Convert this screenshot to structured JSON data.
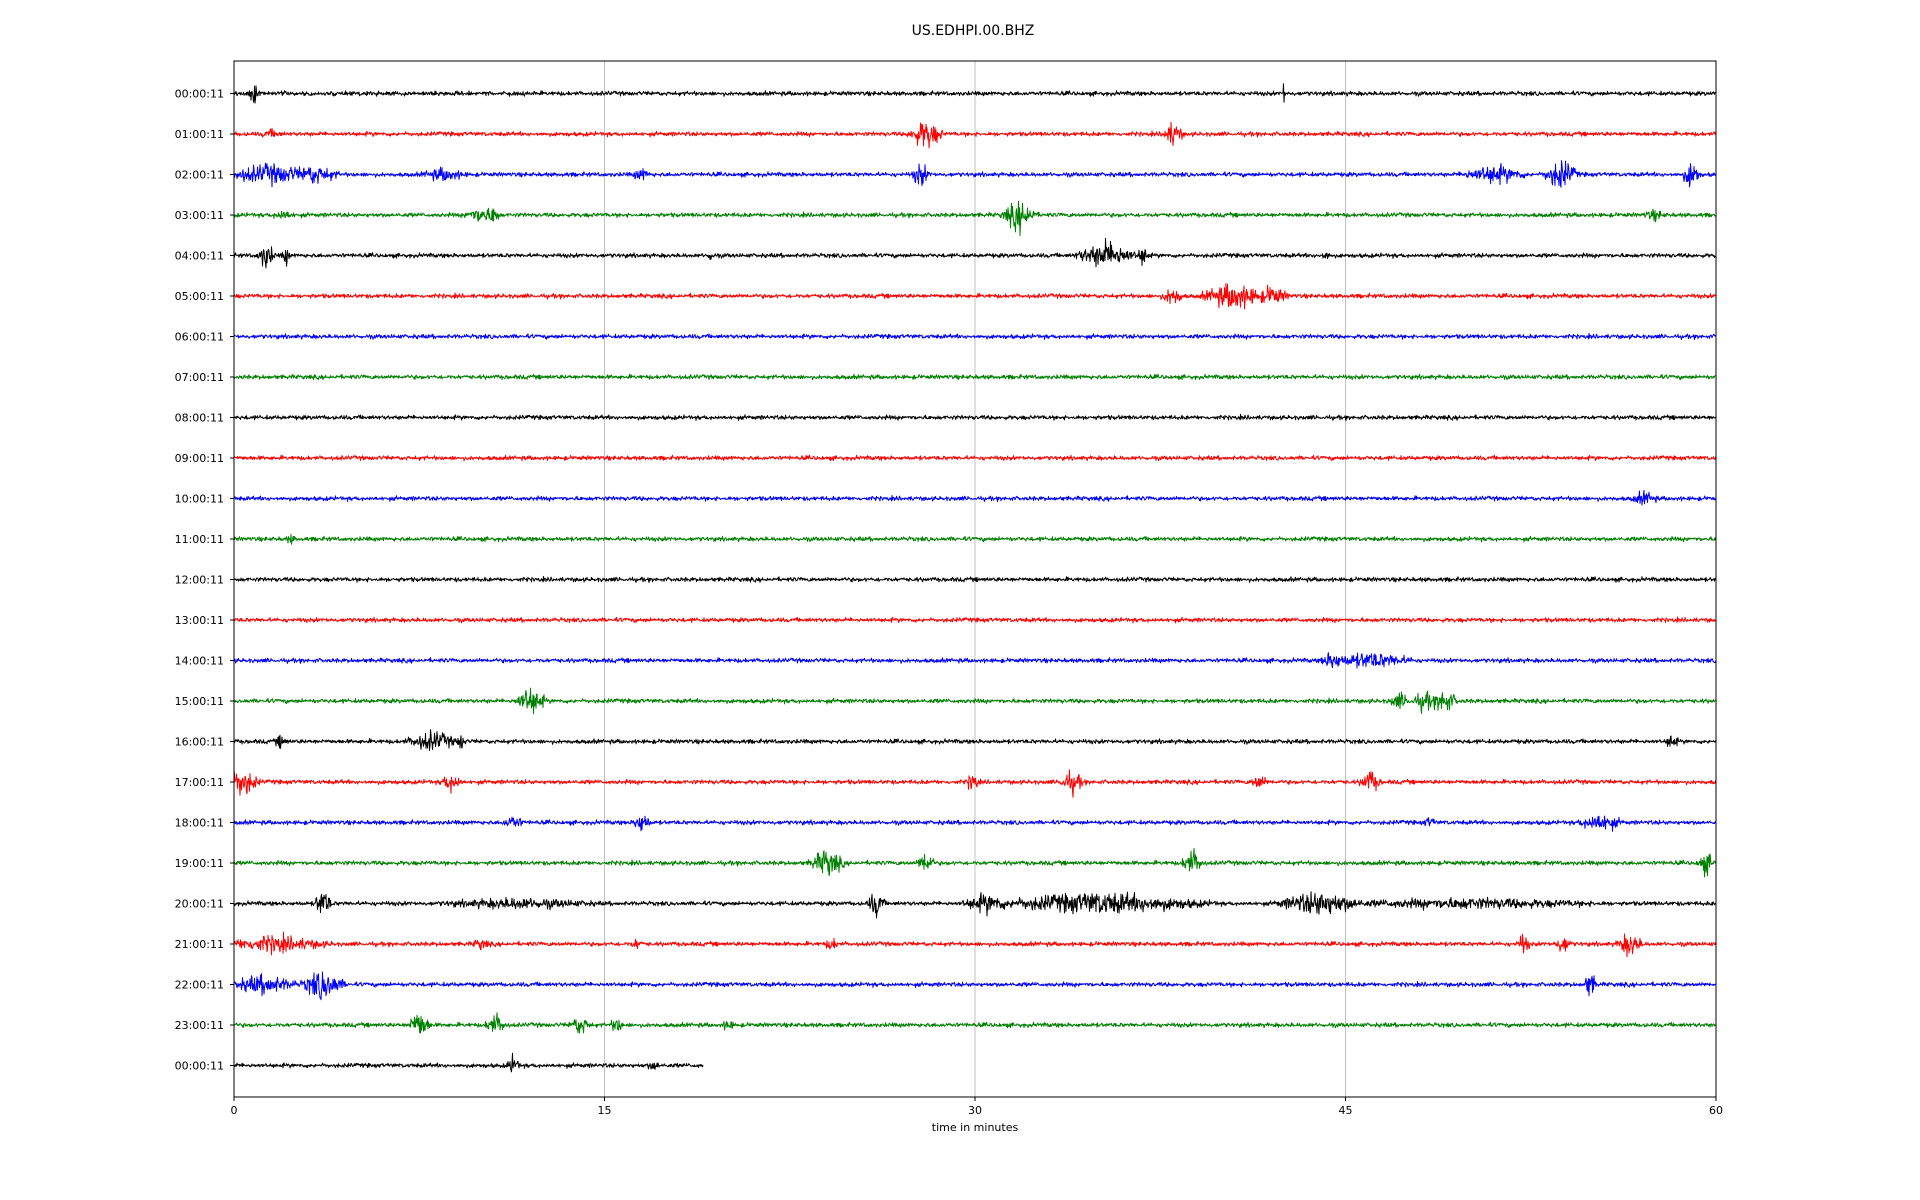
{
  "chart_data": {
    "type": "line",
    "title": "US.EDHPI.00.BHZ",
    "xlabel": "time in minutes",
    "ylabel": "",
    "xlim": [
      0,
      60
    ],
    "x_ticks": [
      "0",
      "15",
      "30",
      "45",
      "60"
    ],
    "x_tick_values": [
      0,
      15,
      30,
      45,
      60
    ],
    "grid": "vertical",
    "legend": "none",
    "colors": [
      "#000000",
      "#ff0000",
      "#0000ff",
      "#008000"
    ],
    "series": [
      {
        "label": "00:00:11",
        "color": "#000000",
        "end_min": 60,
        "events": [
          {
            "t": 0.8,
            "a": 1.0,
            "d": 0.2
          },
          {
            "t": 42.5,
            "a": 0.9,
            "d": 0.05
          }
        ]
      },
      {
        "label": "01:00:11",
        "color": "#ff0000",
        "end_min": 60,
        "events": [
          {
            "t": 28.0,
            "a": 1.0,
            "d": 0.8
          },
          {
            "t": 38.0,
            "a": 0.8,
            "d": 0.5
          },
          {
            "t": 1.5,
            "a": 0.2,
            "d": 0.5
          }
        ]
      },
      {
        "label": "02:00:11",
        "color": "#0000ff",
        "end_min": 60,
        "events": [
          {
            "t": 1.5,
            "a": 0.6,
            "d": 2.5
          },
          {
            "t": 3.2,
            "a": 0.6,
            "d": 1.2
          },
          {
            "t": 8.5,
            "a": 0.4,
            "d": 1.0
          },
          {
            "t": 16.5,
            "a": 0.4,
            "d": 0.4
          },
          {
            "t": 27.8,
            "a": 0.8,
            "d": 0.4
          },
          {
            "t": 51.0,
            "a": 0.6,
            "d": 1.5
          },
          {
            "t": 53.7,
            "a": 1.0,
            "d": 0.8
          },
          {
            "t": 59.0,
            "a": 1.0,
            "d": 0.4
          }
        ]
      },
      {
        "label": "03:00:11",
        "color": "#008000",
        "end_min": 60,
        "events": [
          {
            "t": 2.0,
            "a": 0.3,
            "d": 0.5
          },
          {
            "t": 10.0,
            "a": 0.5,
            "d": 0.8
          },
          {
            "t": 10.5,
            "a": 0.7,
            "d": 0.3
          },
          {
            "t": 31.8,
            "a": 1.0,
            "d": 0.8
          },
          {
            "t": 57.5,
            "a": 0.3,
            "d": 0.5
          }
        ]
      },
      {
        "label": "04:00:11",
        "color": "#000000",
        "end_min": 60,
        "events": [
          {
            "t": 1.3,
            "a": 0.9,
            "d": 0.4
          },
          {
            "t": 2.1,
            "a": 0.6,
            "d": 0.2
          },
          {
            "t": 19.3,
            "a": 0.3,
            "d": 0.2
          },
          {
            "t": 35.3,
            "a": 0.9,
            "d": 1.4
          },
          {
            "t": 36.8,
            "a": 0.7,
            "d": 0.3
          },
          {
            "t": 44.2,
            "a": 0.3,
            "d": 0.2
          }
        ]
      },
      {
        "label": "05:00:11",
        "color": "#ff0000",
        "end_min": 60,
        "events": [
          {
            "t": 38.0,
            "a": 0.6,
            "d": 0.5
          },
          {
            "t": 40.5,
            "a": 0.9,
            "d": 1.5
          },
          {
            "t": 42.0,
            "a": 0.6,
            "d": 0.8
          }
        ]
      },
      {
        "label": "06:00:11",
        "color": "#0000ff",
        "end_min": 60,
        "events": []
      },
      {
        "label": "07:00:11",
        "color": "#008000",
        "end_min": 60,
        "events": []
      },
      {
        "label": "08:00:11",
        "color": "#000000",
        "end_min": 60,
        "events": []
      },
      {
        "label": "09:00:11",
        "color": "#ff0000",
        "end_min": 60,
        "events": []
      },
      {
        "label": "10:00:11",
        "color": "#0000ff",
        "end_min": 60,
        "events": [
          {
            "t": 57.1,
            "a": 0.4,
            "d": 0.6
          }
        ]
      },
      {
        "label": "11:00:11",
        "color": "#008000",
        "end_min": 60,
        "events": [
          {
            "t": 2.3,
            "a": 0.3,
            "d": 0.2
          }
        ]
      },
      {
        "label": "12:00:11",
        "color": "#000000",
        "end_min": 60,
        "events": []
      },
      {
        "label": "13:00:11",
        "color": "#ff0000",
        "end_min": 60,
        "events": []
      },
      {
        "label": "14:00:11",
        "color": "#0000ff",
        "end_min": 60,
        "events": [
          {
            "t": 44.5,
            "a": 0.6,
            "d": 0.6
          },
          {
            "t": 46.0,
            "a": 0.5,
            "d": 2.0
          }
        ]
      },
      {
        "label": "15:00:11",
        "color": "#008000",
        "end_min": 60,
        "events": [
          {
            "t": 12.0,
            "a": 1.0,
            "d": 0.7
          },
          {
            "t": 47.2,
            "a": 0.5,
            "d": 0.5
          },
          {
            "t": 48.2,
            "a": 0.6,
            "d": 0.6
          },
          {
            "t": 49.0,
            "a": 0.8,
            "d": 0.6
          }
        ]
      },
      {
        "label": "16:00:11",
        "color": "#000000",
        "end_min": 60,
        "events": [
          {
            "t": 1.9,
            "a": 0.4,
            "d": 0.3
          },
          {
            "t": 8.0,
            "a": 0.6,
            "d": 1.2
          },
          {
            "t": 9.2,
            "a": 0.6,
            "d": 0.2
          },
          {
            "t": 58.2,
            "a": 0.5,
            "d": 0.3
          }
        ]
      },
      {
        "label": "17:00:11",
        "color": "#ff0000",
        "end_min": 60,
        "events": [
          {
            "t": 0.3,
            "a": 1.0,
            "d": 0.8
          },
          {
            "t": 8.8,
            "a": 0.6,
            "d": 0.5
          },
          {
            "t": 29.9,
            "a": 0.6,
            "d": 0.3
          },
          {
            "t": 33.9,
            "a": 0.7,
            "d": 0.6
          },
          {
            "t": 41.5,
            "a": 0.5,
            "d": 0.4
          },
          {
            "t": 46.0,
            "a": 0.7,
            "d": 0.5
          }
        ]
      },
      {
        "label": "18:00:11",
        "color": "#0000ff",
        "end_min": 60,
        "events": [
          {
            "t": 11.3,
            "a": 0.4,
            "d": 0.5
          },
          {
            "t": 16.5,
            "a": 0.7,
            "d": 0.4
          },
          {
            "t": 48.4,
            "a": 0.3,
            "d": 0.3
          },
          {
            "t": 55.3,
            "a": 0.6,
            "d": 1.0
          }
        ]
      },
      {
        "label": "19:00:11",
        "color": "#008000",
        "end_min": 60,
        "events": [
          {
            "t": 24.0,
            "a": 0.9,
            "d": 0.8
          },
          {
            "t": 28.0,
            "a": 0.8,
            "d": 0.4
          },
          {
            "t": 38.8,
            "a": 0.9,
            "d": 0.5
          },
          {
            "t": 59.6,
            "a": 0.7,
            "d": 0.4
          }
        ]
      },
      {
        "label": "20:00:11",
        "color": "#000000",
        "end_min": 60,
        "events": [
          {
            "t": 3.6,
            "a": 1.0,
            "d": 0.4
          },
          {
            "t": 11.5,
            "a": 0.3,
            "d": 3.5
          },
          {
            "t": 26.0,
            "a": 0.9,
            "d": 0.4
          },
          {
            "t": 30.5,
            "a": 0.6,
            "d": 1.2
          },
          {
            "t": 35.0,
            "a": 0.7,
            "d": 5.0
          },
          {
            "t": 44.0,
            "a": 0.8,
            "d": 2.0
          },
          {
            "t": 50.0,
            "a": 0.3,
            "d": 6.0
          }
        ]
      },
      {
        "label": "21:00:11",
        "color": "#ff0000",
        "end_min": 60,
        "events": [
          {
            "t": 1.6,
            "a": 0.5,
            "d": 2.5
          },
          {
            "t": 10.0,
            "a": 0.3,
            "d": 0.4
          },
          {
            "t": 16.3,
            "a": 0.3,
            "d": 0.3
          },
          {
            "t": 24.2,
            "a": 0.4,
            "d": 0.3
          },
          {
            "t": 52.2,
            "a": 0.7,
            "d": 0.3
          },
          {
            "t": 53.8,
            "a": 0.6,
            "d": 0.4
          },
          {
            "t": 56.5,
            "a": 0.8,
            "d": 0.6
          }
        ]
      },
      {
        "label": "22:00:11",
        "color": "#0000ff",
        "end_min": 60,
        "events": [
          {
            "t": 1.2,
            "a": 0.6,
            "d": 1.6
          },
          {
            "t": 3.6,
            "a": 1.0,
            "d": 1.0
          },
          {
            "t": 54.9,
            "a": 0.9,
            "d": 0.3
          }
        ]
      },
      {
        "label": "23:00:11",
        "color": "#008000",
        "end_min": 60,
        "events": [
          {
            "t": 7.5,
            "a": 1.0,
            "d": 0.5
          },
          {
            "t": 10.6,
            "a": 0.7,
            "d": 0.5
          },
          {
            "t": 14.0,
            "a": 0.6,
            "d": 0.5
          },
          {
            "t": 15.5,
            "a": 0.5,
            "d": 0.3
          },
          {
            "t": 20.0,
            "a": 0.3,
            "d": 0.3
          }
        ]
      },
      {
        "label": "00:00:11",
        "color": "#000000",
        "end_min": 19.0,
        "events": [
          {
            "t": 11.3,
            "a": 0.6,
            "d": 0.3
          },
          {
            "t": 17.0,
            "a": 0.3,
            "d": 0.3
          }
        ]
      }
    ]
  }
}
